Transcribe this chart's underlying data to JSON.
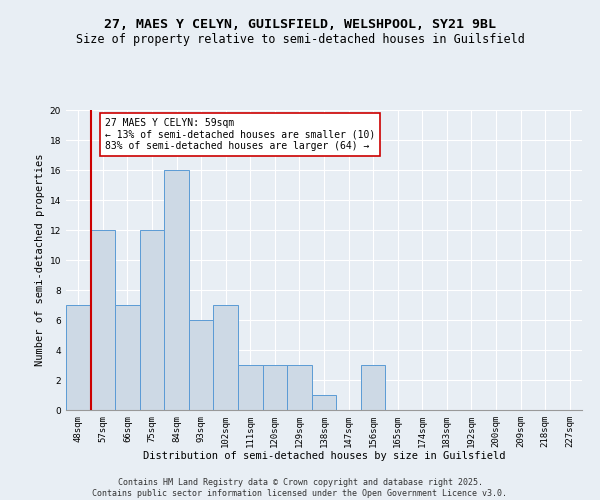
{
  "title1": "27, MAES Y CELYN, GUILSFIELD, WELSHPOOL, SY21 9BL",
  "title2": "Size of property relative to semi-detached houses in Guilsfield",
  "xlabel": "Distribution of semi-detached houses by size in Guilsfield",
  "ylabel": "Number of semi-detached properties",
  "categories": [
    "48sqm",
    "57sqm",
    "66sqm",
    "75sqm",
    "84sqm",
    "93sqm",
    "102sqm",
    "111sqm",
    "120sqm",
    "129sqm",
    "138sqm",
    "147sqm",
    "156sqm",
    "165sqm",
    "174sqm",
    "183sqm",
    "192sqm",
    "200sqm",
    "209sqm",
    "218sqm",
    "227sqm"
  ],
  "values": [
    7,
    12,
    7,
    12,
    16,
    6,
    7,
    3,
    3,
    3,
    1,
    0,
    3,
    0,
    0,
    0,
    0,
    0,
    0,
    0,
    0
  ],
  "bar_color": "#cdd9e5",
  "bar_edge_color": "#5b9bd5",
  "highlight_bar_index": 1,
  "highlight_line_color": "#cc0000",
  "annotation_text": "27 MAES Y CELYN: 59sqm\n← 13% of semi-detached houses are smaller (10)\n83% of semi-detached houses are larger (64) →",
  "annotation_box_color": "#ffffff",
  "annotation_box_edge_color": "#cc0000",
  "ylim": [
    0,
    20
  ],
  "yticks": [
    0,
    2,
    4,
    6,
    8,
    10,
    12,
    14,
    16,
    18,
    20
  ],
  "footer": "Contains HM Land Registry data © Crown copyright and database right 2025.\nContains public sector information licensed under the Open Government Licence v3.0.",
  "background_color": "#e8eef4",
  "grid_color": "#ffffff",
  "title_fontsize": 9.5,
  "subtitle_fontsize": 8.5,
  "axis_label_fontsize": 7.5,
  "tick_fontsize": 6.5,
  "annotation_fontsize": 7,
  "footer_fontsize": 6
}
